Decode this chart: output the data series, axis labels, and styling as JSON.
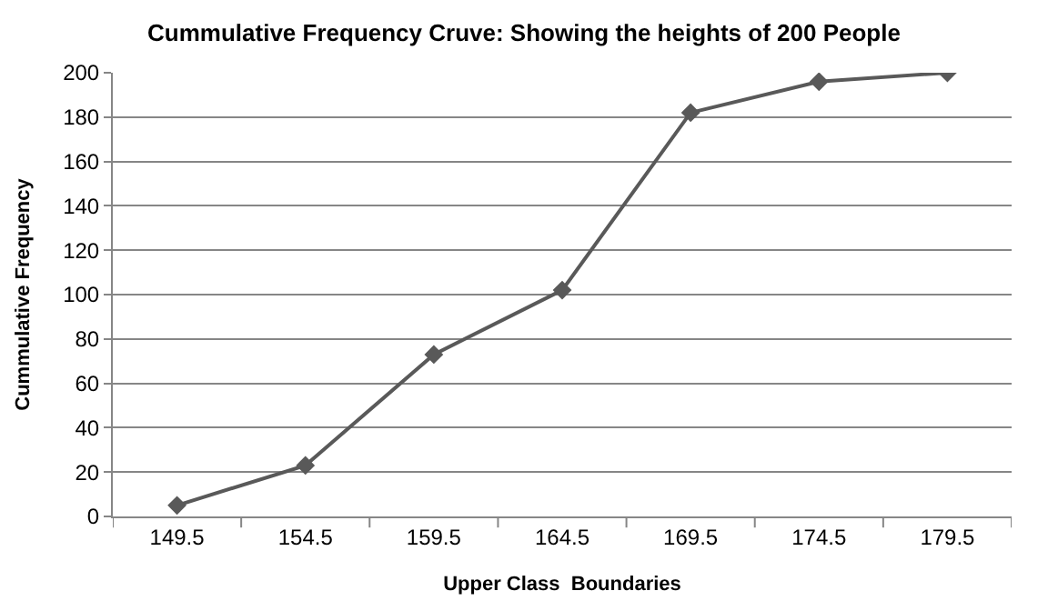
{
  "chart_data": {
    "type": "line",
    "title": "Cummulative Frequency Cruve: Showing the heights of 200 People",
    "xlabel": "Upper Class  Boundaries",
    "ylabel": "Cummulative Frequency",
    "categories": [
      "149.5",
      "154.5",
      "159.5",
      "164.5",
      "169.5",
      "174.5",
      "179.5"
    ],
    "series": [
      {
        "color": "#595959",
        "values": [
          5,
          23,
          73,
          102,
          182,
          196,
          200
        ]
      }
    ],
    "ylim": [
      0,
      200
    ],
    "yticks": [
      0,
      20,
      40,
      60,
      80,
      100,
      120,
      140,
      160,
      180,
      200
    ],
    "grid": "y",
    "legend": false,
    "marker": "diamond",
    "line_style": "solid"
  }
}
